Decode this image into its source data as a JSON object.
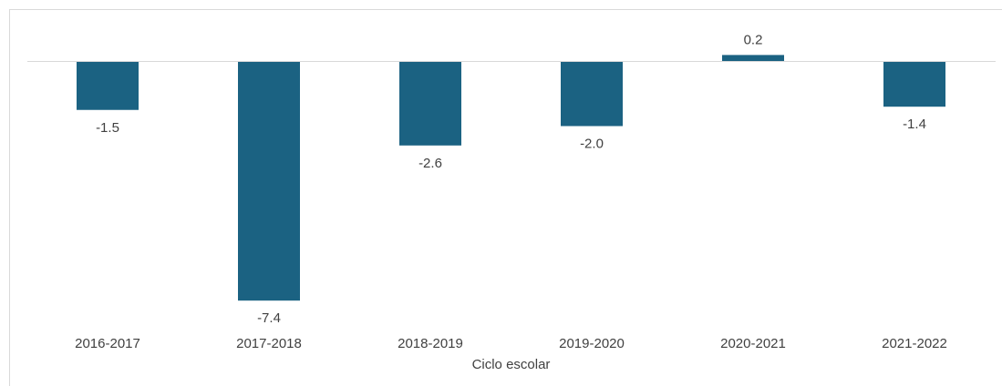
{
  "chart_data": {
    "type": "bar",
    "categories": [
      "2016-2017",
      "2017-2018",
      "2018-2019",
      "2019-2020",
      "2020-2021",
      "2021-2022"
    ],
    "values": [
      -1.5,
      -7.4,
      -2.6,
      -2.0,
      0.2,
      -1.4
    ],
    "data_labels": [
      "-1.5",
      "-7.4",
      "-2.6",
      "-2.0",
      "0.2",
      "-1.4"
    ],
    "title": "",
    "xlabel": "Ciclo escolar",
    "ylabel": "",
    "ylim": [
      -7.6,
      0.4
    ],
    "grid": false,
    "legend": "none",
    "bar_color": "#1b6282",
    "axis_color": "#d9d9d9"
  }
}
